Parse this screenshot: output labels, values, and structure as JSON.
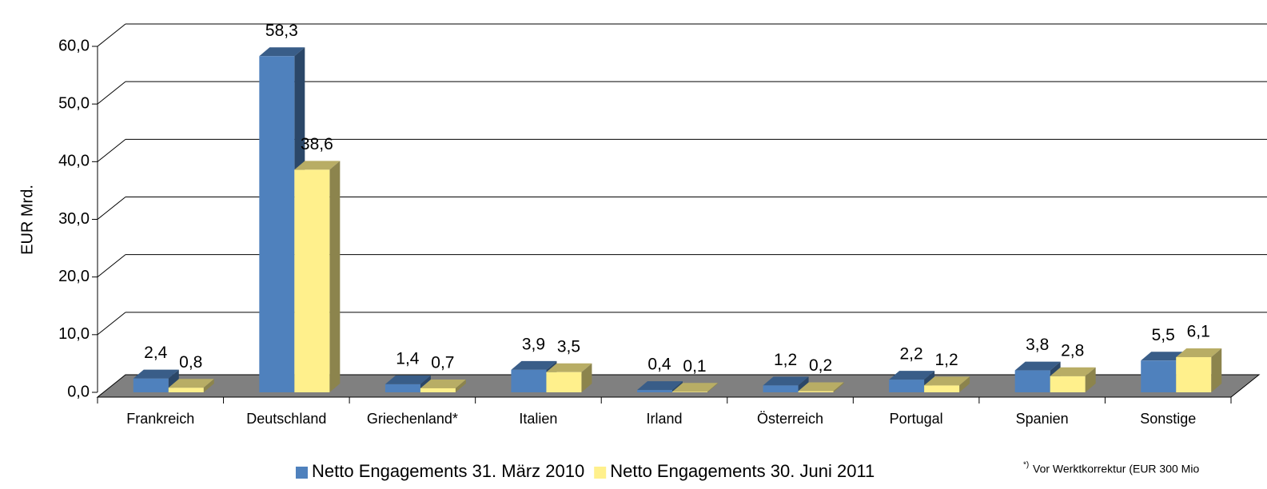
{
  "chart_data": {
    "type": "bar3d",
    "y_label": "EUR Mrd.",
    "categories": [
      "Frankreich",
      "Deutschland",
      "Griechenland*",
      "Italien",
      "Irland",
      "Österreich",
      "Portugal",
      "Spanien",
      "Sonstige"
    ],
    "series": [
      {
        "name": "Netto Engagements 31. März 2010",
        "color": "#4f81bd",
        "values": [
          2.4,
          58.3,
          1.4,
          3.9,
          0.4,
          1.2,
          2.2,
          3.8,
          5.5
        ],
        "value_labels": [
          "2,4",
          "58,3",
          "1,4",
          "3,9",
          "0,4",
          "1,2",
          "2,2",
          "3,8",
          "5,5"
        ]
      },
      {
        "name": "Netto Engagements 30. Juni 2011",
        "color": "#fff08c",
        "values": [
          0.8,
          38.6,
          0.7,
          3.5,
          0.1,
          0.2,
          1.2,
          2.8,
          6.1
        ],
        "value_labels": [
          "0,8",
          "38,6",
          "0,7",
          "3,5",
          "0,1",
          "0,2",
          "1,2",
          "2,8",
          "6,1"
        ]
      }
    ],
    "ylim": [
      0,
      60
    ],
    "yticks": [
      {
        "value": 0,
        "label": "0,0"
      },
      {
        "value": 10,
        "label": "10,0"
      },
      {
        "value": 20,
        "label": "20,0"
      },
      {
        "value": 30,
        "label": "30,0"
      },
      {
        "value": 40,
        "label": "40,0"
      },
      {
        "value": 50,
        "label": "50,0"
      },
      {
        "value": 60,
        "label": "60,0"
      }
    ],
    "grid": true,
    "legend": "bottom",
    "footnote_mark": "*)",
    "footnote": "Vor Werktkorrektur (EUR 300 Mio"
  }
}
